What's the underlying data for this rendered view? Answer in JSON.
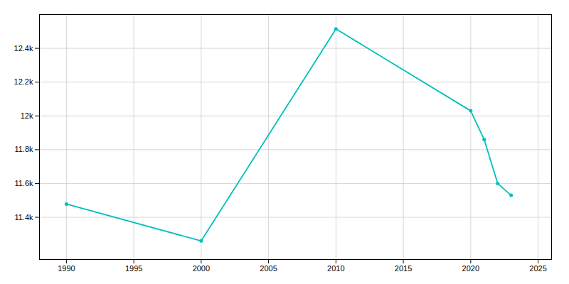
{
  "chart_data": {
    "type": "line",
    "x": [
      1990,
      2000,
      2010,
      2020,
      2021,
      2022,
      2023
    ],
    "values": [
      11478,
      11260,
      12515,
      12030,
      11860,
      11600,
      11530
    ],
    "color": "#00BFBF",
    "marker": "circle",
    "xlim": [
      1988,
      2026
    ],
    "xticks": [
      1990,
      1995,
      2000,
      2005,
      2010,
      2015,
      2020,
      2025
    ],
    "ylim": [
      11150,
      12600
    ],
    "yticks": [
      {
        "value": 11400,
        "label": "11.4k"
      },
      {
        "value": 11600,
        "label": "11.6k"
      },
      {
        "value": 11800,
        "label": "11.8k"
      },
      {
        "value": 12000,
        "label": "12k"
      },
      {
        "value": 12200,
        "label": "12.2k"
      },
      {
        "value": 12400,
        "label": "12.4k"
      }
    ],
    "grid": true
  }
}
